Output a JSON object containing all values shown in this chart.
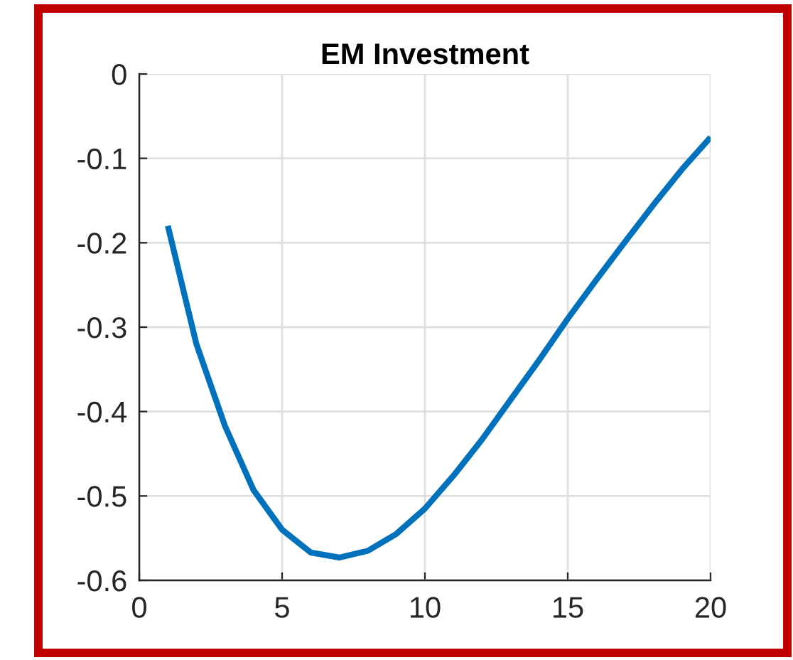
{
  "chart_data": {
    "type": "line",
    "title": "EM Investment",
    "x": [
      1,
      2,
      3,
      4,
      5,
      6,
      7,
      8,
      9,
      10,
      11,
      12,
      13,
      14,
      15,
      16,
      17,
      18,
      19,
      20
    ],
    "series": [
      {
        "color": "#0072bd",
        "values": [
          -0.18,
          -0.32,
          -0.417,
          -0.493,
          -0.54,
          -0.567,
          -0.573,
          -0.565,
          -0.545,
          -0.515,
          -0.476,
          -0.433,
          -0.386,
          -0.339,
          -0.29,
          -0.244,
          -0.199,
          -0.155,
          -0.113,
          -0.075
        ]
      }
    ],
    "xlim": [
      0,
      20
    ],
    "xticks": [
      0,
      5,
      10,
      15,
      20
    ],
    "ylim": [
      -0.6,
      0
    ],
    "yticks": [
      -0.6,
      -0.5,
      -0.4,
      -0.3,
      -0.2,
      -0.1,
      0
    ],
    "grid": true,
    "marker": "none",
    "line_style": "solid",
    "legend": false
  }
}
